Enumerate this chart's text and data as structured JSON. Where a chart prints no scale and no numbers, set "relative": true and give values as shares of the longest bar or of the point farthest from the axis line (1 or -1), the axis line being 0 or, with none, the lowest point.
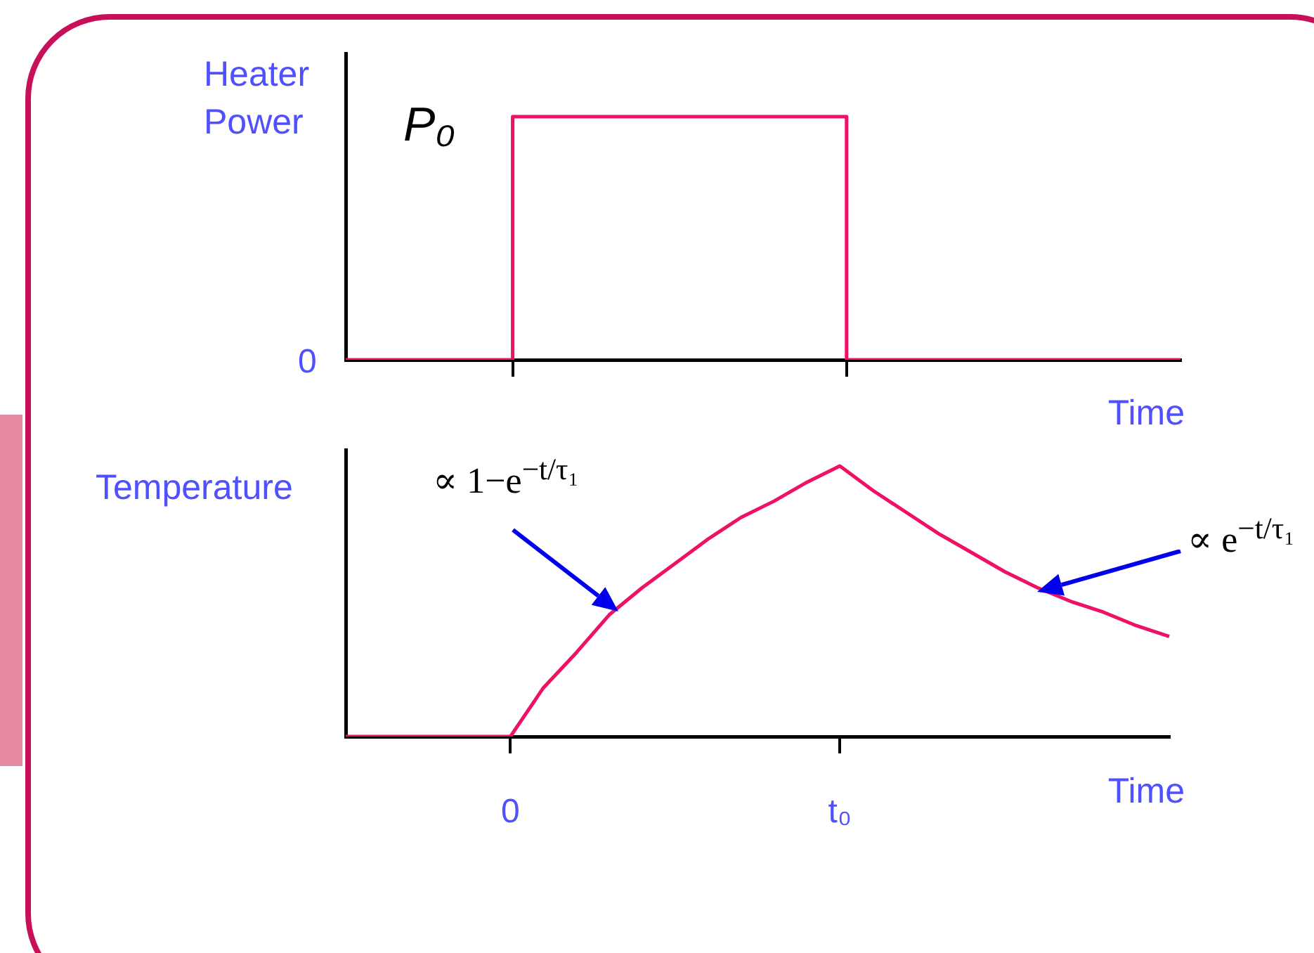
{
  "chart_data": [
    {
      "type": "step",
      "ylabel": "Heater Power",
      "xlabel": "Time",
      "relative": true,
      "categories": [
        null,
        null,
        null,
        null,
        null,
        null,
        null,
        null,
        null,
        null,
        null,
        null,
        null,
        null,
        null,
        null,
        null,
        null,
        null,
        null,
        null,
        null,
        null,
        null,
        null,
        null
      ],
      "series": [
        {
          "color": "#ee1166",
          "values": [
            0,
            0,
            0,
            0,
            0,
            1,
            1,
            1,
            1,
            1,
            1,
            1,
            1,
            1,
            1,
            0,
            0,
            0,
            0,
            0,
            0,
            0,
            0,
            0,
            0,
            0
          ]
        }
      ],
      "tick_labels": false,
      "legend": false,
      "marker": "none",
      "annotations": [
        "P₀",
        "0"
      ]
    },
    {
      "type": "line",
      "ylabel": "Temperature",
      "xlabel": "Time",
      "relative": true,
      "categories": [
        null,
        null,
        null,
        null,
        null,
        "0",
        null,
        null,
        null,
        null,
        null,
        null,
        null,
        null,
        null,
        "t₀",
        null,
        null,
        null,
        null,
        null,
        null,
        null,
        null,
        null,
        null
      ],
      "series": [
        {
          "color": "#ee1166",
          "values": [
            0,
            0,
            0,
            0,
            0,
            0,
            0.18,
            0.31,
            0.45,
            0.55,
            0.64,
            0.73,
            0.81,
            0.87,
            0.94,
            1,
            0.91,
            0.83,
            0.75,
            0.68,
            0.61,
            0.55,
            0.5,
            0.46,
            0.41,
            0.37
          ]
        }
      ],
      "tick_labels": "x",
      "legend": false,
      "marker": "none",
      "annotations": [
        "∝ 1−e$^{−t/τ₁}$",
        "∝ e$^{−t/τ₁}$"
      ]
    }
  ]
}
